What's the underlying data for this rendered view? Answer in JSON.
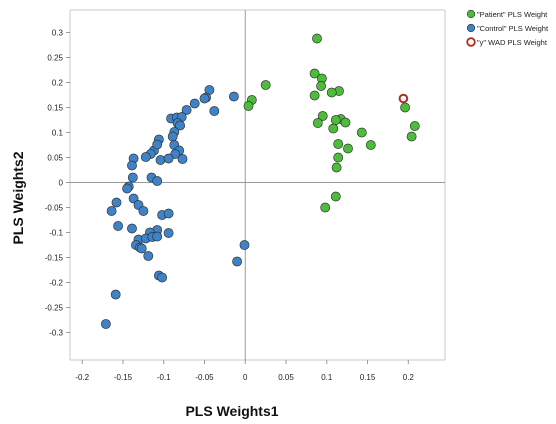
{
  "chart_data": {
    "type": "scatter",
    "xlabel": "PLS Weights1",
    "ylabel": "PLS Weights2",
    "xlim": [
      -0.215,
      0.245
    ],
    "ylim": [
      -0.355,
      0.345
    ],
    "xticks": [
      -0.2,
      -0.15,
      -0.1,
      -0.05,
      0,
      0.05,
      0.1,
      0.15,
      0.2
    ],
    "xtick_labels": [
      "-0.2",
      "-0.15",
      "-0.1",
      "-0.05",
      "0",
      "0.05",
      "0.1",
      "0.15",
      "0.2"
    ],
    "yticks": [
      0.3,
      0.25,
      0.2,
      0.15,
      0.1,
      0.05,
      0,
      -0.05,
      -0.1,
      -0.15,
      -0.2,
      -0.25,
      -0.3
    ],
    "ytick_labels": [
      "0.3",
      "0.25",
      "0.2",
      "0.15",
      "0.1",
      "0.05",
      "0",
      "-0.05",
      "-0.1",
      "-0.15",
      "-0.2",
      "-0.25",
      "-0.3"
    ],
    "grid": false,
    "reference_lines": "x=0 and y=0",
    "legend_position": "top-right outside plot",
    "series": [
      {
        "name": "\"Patient\" PLS Weight",
        "color": "#4dbb3b",
        "marker": "filled-circle",
        "points": [
          [
            0.088,
            0.288
          ],
          [
            0.085,
            0.218
          ],
          [
            0.094,
            0.208
          ],
          [
            0.093,
            0.193
          ],
          [
            0.115,
            0.183
          ],
          [
            0.106,
            0.18
          ],
          [
            0.085,
            0.174
          ],
          [
            0.025,
            0.195
          ],
          [
            0.008,
            0.165
          ],
          [
            0.004,
            0.153
          ],
          [
            0.095,
            0.133
          ],
          [
            0.117,
            0.127
          ],
          [
            0.111,
            0.125
          ],
          [
            0.089,
            0.119
          ],
          [
            0.123,
            0.12
          ],
          [
            0.108,
            0.108
          ],
          [
            0.143,
            0.1
          ],
          [
            0.196,
            0.15
          ],
          [
            0.208,
            0.113
          ],
          [
            0.204,
            0.092
          ],
          [
            0.114,
            0.077
          ],
          [
            0.154,
            0.075
          ],
          [
            0.126,
            0.068
          ],
          [
            0.114,
            0.05
          ],
          [
            0.112,
            0.03
          ],
          [
            0.111,
            -0.028
          ],
          [
            0.098,
            -0.05
          ]
        ]
      },
      {
        "name": "\"Control\" PLS Weight",
        "color": "#3f82c6",
        "marker": "filled-circle",
        "points": [
          [
            -0.044,
            0.185
          ],
          [
            -0.048,
            0.17
          ],
          [
            -0.05,
            0.168
          ],
          [
            -0.062,
            0.158
          ],
          [
            -0.014,
            0.172
          ],
          [
            -0.038,
            0.143
          ],
          [
            -0.072,
            0.145
          ],
          [
            -0.091,
            0.128
          ],
          [
            -0.084,
            0.13
          ],
          [
            -0.078,
            0.131
          ],
          [
            -0.083,
            0.119
          ],
          [
            -0.08,
            0.114
          ],
          [
            -0.087,
            0.101
          ],
          [
            -0.089,
            0.092
          ],
          [
            -0.106,
            0.086
          ],
          [
            -0.112,
            0.064
          ],
          [
            -0.108,
            0.076
          ],
          [
            -0.087,
            0.075
          ],
          [
            -0.081,
            0.064
          ],
          [
            -0.086,
            0.057
          ],
          [
            -0.077,
            0.047
          ],
          [
            -0.116,
            0.057
          ],
          [
            -0.122,
            0.051
          ],
          [
            -0.137,
            0.048
          ],
          [
            -0.104,
            0.045
          ],
          [
            -0.094,
            0.048
          ],
          [
            -0.139,
            0.034
          ],
          [
            -0.115,
            0.01
          ],
          [
            -0.138,
            0.01
          ],
          [
            -0.108,
            0.003
          ],
          [
            -0.143,
            -0.008
          ],
          [
            -0.145,
            -0.012
          ],
          [
            -0.158,
            -0.04
          ],
          [
            -0.164,
            -0.057
          ],
          [
            -0.137,
            -0.032
          ],
          [
            -0.131,
            -0.045
          ],
          [
            -0.125,
            -0.057
          ],
          [
            -0.102,
            -0.065
          ],
          [
            -0.094,
            -0.062
          ],
          [
            -0.156,
            -0.087
          ],
          [
            -0.108,
            -0.095
          ],
          [
            -0.139,
            -0.092
          ],
          [
            -0.117,
            -0.1
          ],
          [
            -0.131,
            -0.114
          ],
          [
            -0.122,
            -0.112
          ],
          [
            -0.114,
            -0.109
          ],
          [
            -0.108,
            -0.108
          ],
          [
            -0.094,
            -0.101
          ],
          [
            -0.134,
            -0.125
          ],
          [
            -0.129,
            -0.13
          ],
          [
            -0.127,
            -0.132
          ],
          [
            -0.119,
            -0.147
          ],
          [
            -0.001,
            -0.125
          ],
          [
            -0.01,
            -0.158
          ],
          [
            -0.106,
            -0.186
          ],
          [
            -0.102,
            -0.19
          ],
          [
            -0.159,
            -0.224
          ],
          [
            -0.171,
            -0.283
          ]
        ]
      },
      {
        "name": "\"y\" WAD PLS Weight",
        "color": "#b52a1e",
        "marker": "hollow-circle",
        "points": [
          [
            0.194,
            0.168
          ]
        ]
      }
    ]
  }
}
